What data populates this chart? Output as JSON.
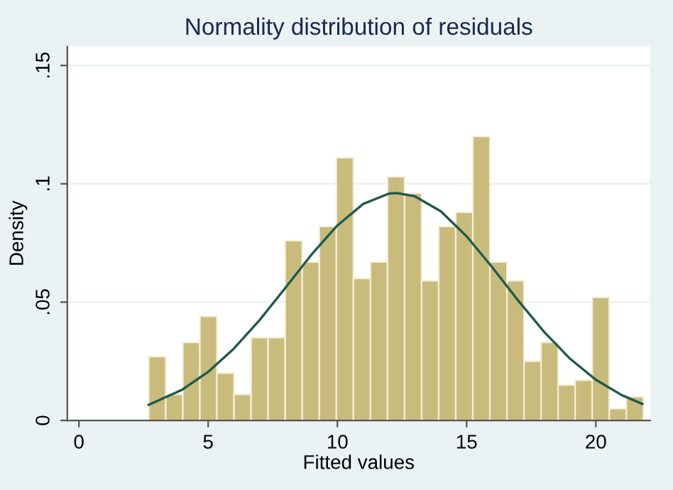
{
  "chart_data": {
    "type": "histogram",
    "title": "Normality distribution of residuals",
    "xlabel": "Fitted values",
    "ylabel": "Density",
    "series": [
      {
        "color": "#c9bb7c",
        "bins": [
          2.7,
          3.36,
          4.02,
          4.68,
          5.34,
          6.0,
          6.66,
          7.32,
          7.98,
          8.64,
          9.3,
          9.96,
          10.62,
          11.28,
          11.94,
          12.6,
          13.26,
          13.92,
          14.58,
          15.24,
          15.9,
          16.56,
          17.22,
          17.88,
          18.54,
          19.2,
          19.86,
          20.52,
          21.18,
          21.84
        ],
        "values": [
          0.027,
          0.011,
          0.033,
          0.044,
          0.02,
          0.011,
          0.035,
          0.035,
          0.076,
          0.067,
          0.082,
          0.111,
          0.06,
          0.067,
          0.103,
          0.096,
          0.059,
          0.082,
          0.088,
          0.12,
          0.067,
          0.059,
          0.025,
          0.033,
          0.015,
          0.017,
          0.052,
          0.005,
          0.01
        ]
      },
      {
        "type": "line",
        "color": "#1f5a4c",
        "x": [
          2.7,
          4,
          5,
          6,
          7,
          8,
          9,
          10,
          11,
          12,
          12.3,
          13,
          14,
          15,
          16,
          17,
          18,
          19,
          20,
          21,
          21.8
        ],
        "values": [
          0.0066,
          0.013,
          0.0205,
          0.0304,
          0.0425,
          0.0562,
          0.0701,
          0.0824,
          0.0915,
          0.0959,
          0.0961,
          0.0947,
          0.0884,
          0.0778,
          0.0646,
          0.0506,
          0.0374,
          0.0261,
          0.0172,
          0.0107,
          0.007
        ]
      }
    ],
    "xlim": [
      -0.45,
      22.1
    ],
    "ylim": [
      0,
      0.158
    ],
    "xticks": [
      0,
      5,
      10,
      15,
      20
    ],
    "yticks": [
      {
        "value": 0,
        "label": "0"
      },
      {
        "value": 0.05,
        "label": ".05"
      },
      {
        "value": 0.1,
        "label": ".1"
      },
      {
        "value": 0.15,
        "label": ".15"
      }
    ],
    "grid": "y"
  }
}
